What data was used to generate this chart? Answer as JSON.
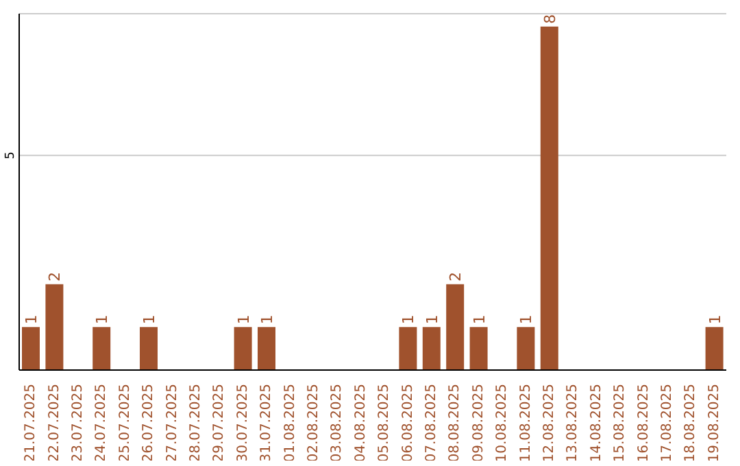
{
  "chart_data": {
    "type": "bar",
    "categories": [
      "21.07.2025",
      "22.07.2025",
      "23.07.2025",
      "24.07.2025",
      "25.07.2025",
      "26.07.2025",
      "27.07.2025",
      "28.07.2025",
      "29.07.2025",
      "30.07.2025",
      "31.07.2025",
      "01.08.2025",
      "02.08.2025",
      "03.08.2025",
      "04.08.2025",
      "05.08.2025",
      "06.08.2025",
      "07.08.2025",
      "08.08.2025",
      "09.08.2025",
      "10.08.2025",
      "11.08.2025",
      "12.08.2025",
      "13.08.2025",
      "14.08.2025",
      "15.08.2025",
      "16.08.2025",
      "17.08.2025",
      "18.08.2025",
      "19.08.2025"
    ],
    "values": [
      1,
      2,
      null,
      1,
      null,
      1,
      null,
      null,
      null,
      1,
      1,
      null,
      null,
      null,
      null,
      null,
      1,
      1,
      2,
      1,
      null,
      1,
      8,
      null,
      null,
      null,
      null,
      null,
      null,
      1
    ],
    "color": "#a0522d",
    "ylim": [
      0,
      8.3
    ],
    "yticks": [
      5
    ],
    "grid": "y",
    "data_labels": true
  }
}
